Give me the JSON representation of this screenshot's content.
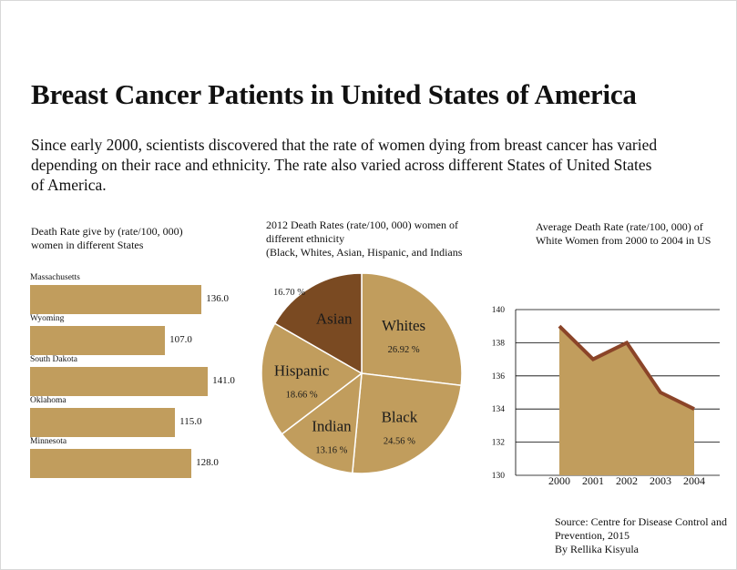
{
  "header": {
    "title": "Breast Cancer Patients in United States of America",
    "intro": "Since early 2000, scientists discovered that the rate of women dying from breast cancer has varied depending on their race and ethnicity. The rate also varied across different States of United States of America."
  },
  "footer": {
    "source_line1": "Source: Centre for Disease Control and",
    "source_line2": "Prevention, 2015",
    "author": "By Rellika Kisyula"
  },
  "colors": {
    "tan": "#c19d5d",
    "brown": "#7a4a22",
    "line": "#8b4428"
  },
  "chart_data": [
    {
      "type": "bar",
      "title_line1": "Death Rate give  by (rate/100, 000)",
      "title_line2": "women in different States",
      "categories": [
        "Massachusetts",
        "Wyoming",
        "South Dakota",
        "Oklahoma",
        "Minnesota"
      ],
      "category_labels": [
        "Massachusetts",
        "Wyoming",
        "South Dakota",
        "Oklahoma",
        "Minnesota"
      ],
      "values": [
        136.0,
        107.0,
        141.0,
        115.0,
        128.0
      ],
      "value_labels": [
        "136.0",
        "107.0",
        "141.0",
        "115.0",
        "128.0"
      ],
      "orientation": "horizontal"
    },
    {
      "type": "pie",
      "title_line1": "2012 Death Rates (rate/100, 000) women of",
      "title_line2": "different ethnicity",
      "title_line3": "(Black, Whites, Asian, Hispanic, and Indians",
      "slices": [
        {
          "name": "Whites",
          "value": 26.92,
          "label": "26.92 %",
          "color": "#c19d5d"
        },
        {
          "name": "Black",
          "value": 24.56,
          "label": "24.56 %",
          "color": "#c19d5d"
        },
        {
          "name": "Indian",
          "value": 13.16,
          "label": "13.16 %",
          "color": "#c19d5d"
        },
        {
          "name": "Hispanic",
          "value": 18.66,
          "label": "18.66 %",
          "color": "#c19d5d"
        },
        {
          "name": "Asian",
          "value": 16.7,
          "label": "16.70 %",
          "color": "#7a4a22"
        }
      ]
    },
    {
      "type": "area",
      "title_line1": "Average Death Rate (rate/100, 000) of",
      "title_line2": "White Women from 2000 to 2004 in US",
      "x": [
        "2000",
        "2001",
        "2002",
        "2003",
        "2004"
      ],
      "values": [
        139.0,
        137.0,
        138.0,
        135.0,
        134.0
      ],
      "ylim": [
        130,
        140
      ],
      "yticks": [
        "130",
        "132",
        "134",
        "136",
        "138",
        "140"
      ],
      "grid": true
    }
  ]
}
